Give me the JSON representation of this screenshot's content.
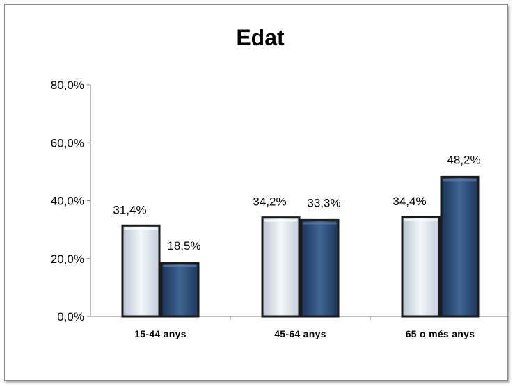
{
  "chart_data": {
    "type": "bar",
    "title": "Edat",
    "xlabel": "",
    "ylabel": "",
    "categories": [
      "15-44 anys",
      "45-64 anys",
      "65 o més anys"
    ],
    "series": [
      {
        "values": [
          31.4,
          34.2,
          34.4
        ],
        "labels": [
          "31,4%",
          "34,2%",
          "34,4%"
        ],
        "color": "#dfe6ef"
      },
      {
        "values": [
          18.5,
          33.3,
          48.2
        ],
        "labels": [
          "18,5%",
          "33,3%",
          "48,2%"
        ],
        "color": "#2d4d78"
      }
    ],
    "ylim": [
      0,
      80
    ],
    "yticks": [
      0,
      20,
      40,
      60,
      80
    ],
    "ytick_labels": [
      "0,0%",
      "20,0%",
      "40,0%",
      "60,0%",
      "80,0%"
    ],
    "grid": false,
    "legend": "none"
  }
}
